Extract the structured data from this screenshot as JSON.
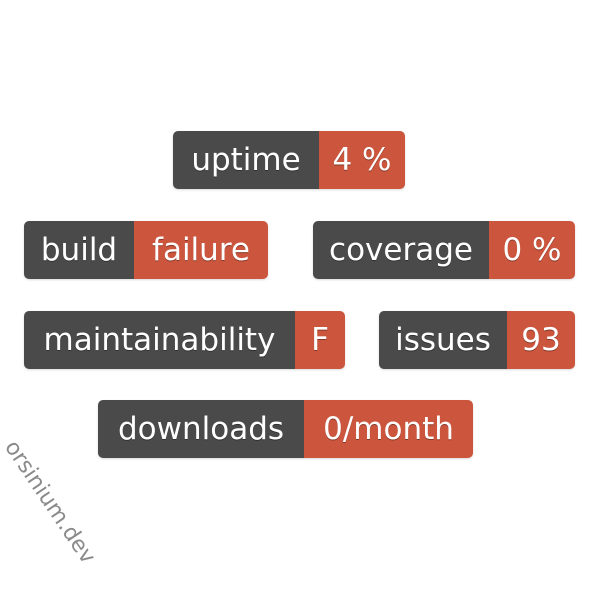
{
  "colors": {
    "label_bg": "#4a4a4a",
    "value_bg": "#cc553d",
    "text": "#ffffff",
    "watermark": "#8a8a8a"
  },
  "badges": {
    "uptime": {
      "label": "uptime",
      "value": "4 %"
    },
    "build": {
      "label": "build",
      "value": "failure"
    },
    "coverage": {
      "label": "coverage",
      "value": "0 %"
    },
    "maintainability": {
      "label": "maintainability",
      "value": "F"
    },
    "issues": {
      "label": "issues",
      "value": "93"
    },
    "downloads": {
      "label": "downloads",
      "value": "0/month"
    }
  },
  "watermark": "orsinium.dev"
}
